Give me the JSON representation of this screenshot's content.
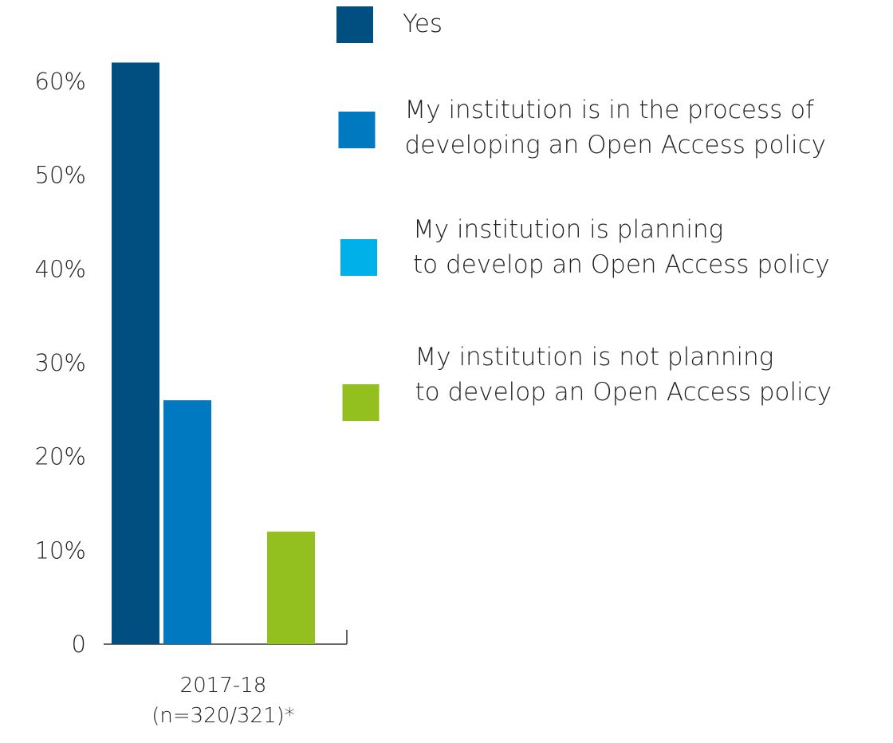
{
  "chart_data": {
    "type": "bar",
    "categories": [
      "2017-18\n(n=320/321)*"
    ],
    "series": [
      {
        "name": "Yes",
        "color": "#004f80",
        "values": [
          62
        ]
      },
      {
        "name": "My institution is in the process of\ndeveloping an Open Access policy",
        "color": "#0079c1",
        "values": [
          26
        ]
      },
      {
        "name": "My institution is planning\nto develop an Open Access policy",
        "color": "#00b0e8",
        "values": [
          0
        ]
      },
      {
        "name": "My institution is not planning\nto develop an Open Access policy",
        "color": "#93c01f",
        "values": [
          12
        ]
      }
    ],
    "ylim": [
      0,
      60
    ],
    "yticks": [
      0,
      {
        "value": 10,
        "label": "10%"
      },
      {
        "value": 20,
        "label": "20%"
      },
      {
        "value": 30,
        "label": "30%"
      },
      {
        "value": 40,
        "label": "40%"
      },
      {
        "value": 50,
        "label": "50%"
      },
      {
        "value": 60,
        "label": "60%"
      }
    ],
    "legend": "right"
  }
}
